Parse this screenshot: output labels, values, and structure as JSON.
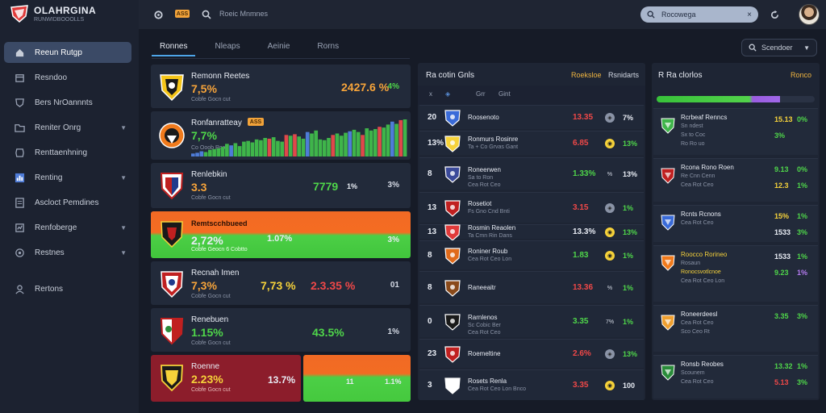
{
  "app": {
    "title": "OLAHRGINA",
    "subtitle": "RUNWIDBOOOLLS"
  },
  "colors": {
    "accent_blue": "#4ea5e8",
    "orange": "#f16a24",
    "green": "#4ccf46",
    "red": "#f04848",
    "gold": "#f2b640",
    "sidebar_active": "#3b4a66"
  },
  "sidebar": {
    "items": [
      {
        "label": "Reeun Rutgp",
        "icon": "home-icon",
        "active": true,
        "chevron": false
      },
      {
        "label": "Resndoo",
        "icon": "calendar-icon",
        "active": false,
        "chevron": false
      },
      {
        "label": "Bers NrOannnts",
        "icon": "shield-icon",
        "active": false,
        "chevron": false
      },
      {
        "label": "Reniter Onrg",
        "icon": "folder-icon",
        "active": false,
        "chevron": true
      },
      {
        "label": "Renttaenhning",
        "icon": "ticket-icon",
        "active": false,
        "chevron": false
      },
      {
        "label": "Renting",
        "icon": "chart-icon",
        "active": false,
        "chevron": true
      },
      {
        "label": "Ascloct Pemdines",
        "icon": "report-icon",
        "active": false,
        "chevron": false
      },
      {
        "label": "Renfoberge",
        "icon": "trophy-icon",
        "active": false,
        "chevron": true
      },
      {
        "label": "Restnes",
        "icon": "settings-icon",
        "active": false,
        "chevron": true
      },
      {
        "label": "Rertons",
        "icon": "user-icon",
        "active": false,
        "chevron": false
      }
    ]
  },
  "topbar": {
    "badge": "ASS",
    "search_text": "Roeic Mnmnes",
    "pill_text": "Rocowega",
    "pill_close": "×"
  },
  "tabs": [
    "Ronnes",
    "Nleaps",
    "Aeinie",
    "Rorns"
  ],
  "select": {
    "value": "Scendoer"
  },
  "left_cards": [
    {
      "name": "Remonn Reetes",
      "value": "7,5%",
      "value_color": "o",
      "sub": "Cobfe Gocn cut",
      "mid": "2427.6 %",
      "mid_color": "o",
      "right": "4%",
      "right_color": "g"
    },
    {
      "name": "Ronfanratteay",
      "tag": "ASS",
      "value": "7,7%",
      "value_color": "g",
      "sub": "Co Ooob Rco"
    },
    {
      "name": "Renlebkin",
      "value": "3.3",
      "value_color": "o",
      "sub": "Cobfe Gocn cut",
      "mid": "7779",
      "mid_color": "g",
      "mid2": "1%",
      "right": "3%"
    },
    {
      "name": "Remtscchbueed",
      "value": "2,72%",
      "value_color": "w",
      "sub": "Cobfe Geocn 6 Cobtto",
      "mid": "1.07%",
      "mid_color": "w",
      "right": "3%"
    },
    {
      "name": "Recnah Imen",
      "value": "7,3%",
      "value_color": "o",
      "sub": "Cobfe Gocn cut",
      "mid": "7,73 %",
      "mid_color": "y",
      "mid2": "2.3.35 %",
      "right": "01"
    },
    {
      "name": "Renebuen",
      "value": "1.15%",
      "value_color": "g",
      "sub": "Cobfe Gocn cut",
      "mid": "43.5%",
      "mid_color": "g",
      "right": "1%"
    },
    {
      "name": "Roenne",
      "value": "2.23%",
      "value_color": "y",
      "sub": "Cobfe Gocn cut",
      "mid": "13.7%",
      "mid_color": "w",
      "right_a": "11",
      "right_b": "1.1%"
    }
  ],
  "left_chart": {
    "type": "bar",
    "values": [
      8,
      10,
      14,
      12,
      18,
      20,
      22,
      26,
      34,
      30,
      36,
      28,
      40,
      42,
      38,
      46,
      44,
      50,
      48,
      52,
      42,
      40,
      58,
      56,
      60,
      54,
      48,
      66,
      62,
      70,
      46,
      44,
      50,
      58,
      62,
      56,
      64,
      68,
      72,
      66,
      58,
      76,
      70,
      74,
      80,
      78,
      86,
      94,
      88,
      98,
      100
    ],
    "colors": [
      "b",
      "g",
      "g",
      "g",
      "r"
    ]
  },
  "middle": {
    "title": "Ra cotin Gnls",
    "h1": "Roeksloe",
    "h2": "Rsnidarts",
    "sub_cols": [
      "x",
      "◈",
      "Grr",
      "Gint"
    ],
    "rows": [
      {
        "num": "20",
        "name": "Roosenoto",
        "sub": "",
        "v1": "13.35",
        "v1c": "r",
        "dot": "◈",
        "dotc": "#8a93a6",
        "v2": "7%",
        "v2c": "w"
      },
      {
        "num": "13%",
        "name": "Ronmurs Rosinre",
        "sub": "Ta + Co Grvas Gant",
        "v1": "6.85",
        "v1c": "r",
        "dot": "◉",
        "dotc": "#f6d23a",
        "v2": "13%",
        "v2c": "g"
      },
      {
        "num": "8",
        "name": "Roneerwen",
        "sub": "Sa to Ron",
        "sub2": "Cea Rot Ceo",
        "v1": "1.33%",
        "v1c": "g",
        "dot": "%",
        "dotc": "transparent",
        "v2": "13%",
        "v2c": "w"
      },
      {
        "num": "13",
        "name": "Rosetiot",
        "sub": "Fs Gno Cnd Bnti",
        "v1": "3.15",
        "v1c": "r",
        "dot": "◈",
        "dotc": "#8a93a6",
        "v2": "1%",
        "v2c": "g"
      },
      {
        "num": "13",
        "name": "Rosmin Reaolen",
        "sub": "Ta Cmn Rin Dans",
        "v1": "13.3%",
        "v1c": "w",
        "dot": "◉",
        "dotc": "#f6d23a",
        "v2": "13%",
        "v2c": "g"
      },
      {
        "num": "8",
        "name": "Roniner Roub",
        "sub": "Cea Rot Ceo Lon",
        "v1": "1.83",
        "v1c": "g",
        "dot": "◉",
        "dotc": "#f6d23a",
        "v2": "1%",
        "v2c": "g"
      },
      {
        "num": "8",
        "name": "Raneeaitr",
        "sub": "",
        "v1": "13.36",
        "v1c": "r",
        "dot": "%",
        "dotc": "transparent",
        "v2": "1%",
        "v2c": "g"
      },
      {
        "num": "0",
        "name": "Rarnlenos",
        "sub": "Sc Cobic Ber",
        "sub2": "Cea Rot Ceo",
        "v1": "3.35",
        "v1c": "g",
        "dot": "7%",
        "dotc": "transparent",
        "v2": "1%",
        "v2c": "g"
      },
      {
        "num": "23",
        "name": "Roemeltine",
        "sub": "",
        "v1": "2.6%",
        "v1c": "r",
        "dot": "◈",
        "dotc": "#8a93a6",
        "v2": "13%",
        "v2c": "g"
      },
      {
        "num": "3",
        "name": "Rosets Renla",
        "sub": "Cea Rot Ceo Lon Bnco",
        "v1": "3.35",
        "v1c": "r",
        "dot": "◉",
        "dotc": "#f6d23a",
        "v2": "100",
        "v2c": "w"
      }
    ]
  },
  "right": {
    "title": "R Ra clorlos",
    "h": "Ronco",
    "progress": 0.78,
    "rows": [
      {
        "name": "Rcrbeaf Renncs",
        "sub": "Sn ndest",
        "sub2": "Sx to Coc",
        "sub3": "Ro Ro uo",
        "v1": "15.13",
        "v1c": "y",
        "v2": "0%",
        "v2c": "g",
        "v3": "3%",
        "v3c": "g"
      },
      {
        "name": "Rcona Rono Roen",
        "sub": "Re Cnn Cenn",
        "sub2": "Cea Rot Ceo",
        "v1": "9.13",
        "v1c": "g",
        "v2": "0%",
        "v2c": "g",
        "v3": "12.3",
        "v3c": "y",
        "v4": "1%",
        "v4c": "g"
      },
      {
        "name": "Rcnts Rcnons",
        "sub": "Cea Rot Ceo",
        "v1": "15%",
        "v1c": "y",
        "v2": "1%",
        "v2c": "g",
        "v3": "1533",
        "v3c": "w",
        "v4": "3%",
        "v4c": "g"
      },
      {
        "name": "Roocco Rorineo",
        "name_color": "y",
        "sub": "Rosaun",
        "sub2": "Ronocsvotlcnoe",
        "sub3": "Cea Rot Ceo Lon",
        "v1": "1533",
        "v1c": "w",
        "v2": "1%",
        "v2c": "g",
        "v3": "9.23",
        "v3c": "g",
        "v4": "1%",
        "v4c": "p"
      },
      {
        "name": "Roneerdeesl",
        "sub": "Cea Rot Ceo",
        "sub2": "Sco Ceo Rt",
        "v1": "3.35",
        "v1c": "g",
        "v2": "3%",
        "v2c": "g"
      },
      {
        "name": "Ronsb Reobes",
        "sub": "Scounem",
        "sub2": "Cea Rot Ceo",
        "v1": "13.32",
        "v1c": "g",
        "v2": "1%",
        "v2c": "g",
        "v3": "5.13",
        "v3c": "r",
        "v4": "3%",
        "v4c": "g"
      }
    ]
  }
}
